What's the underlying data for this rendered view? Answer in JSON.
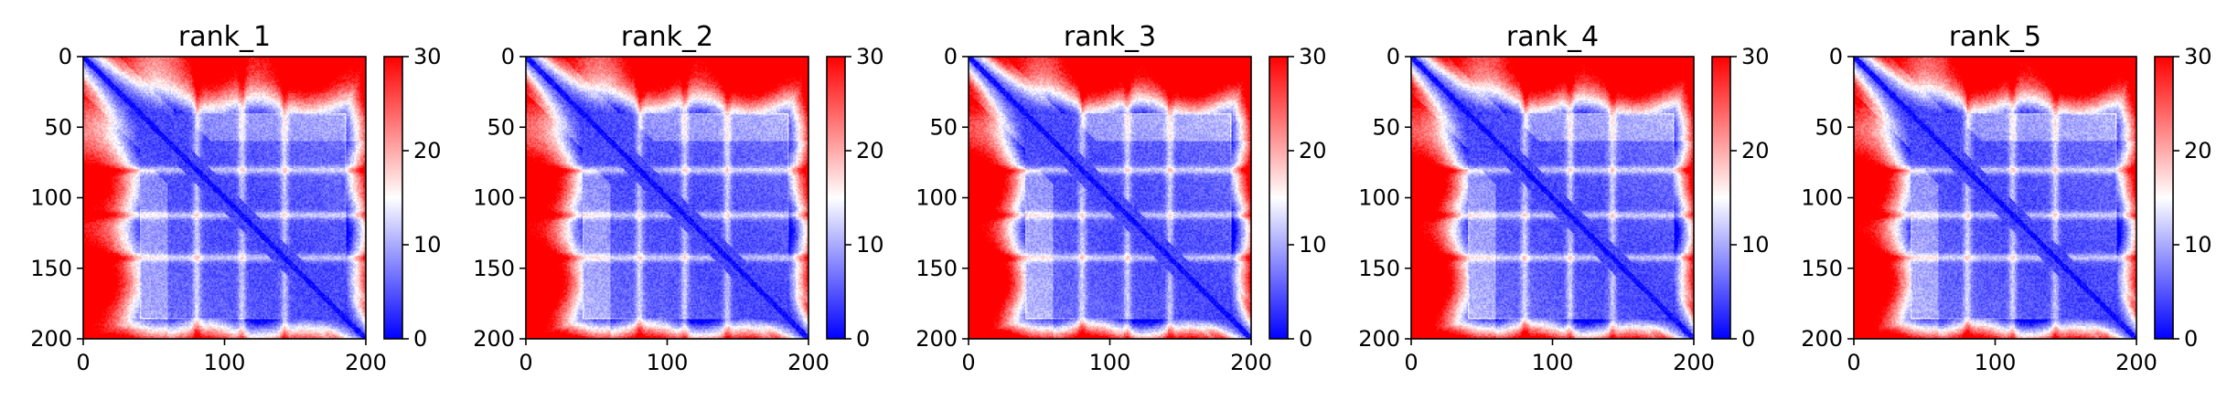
{
  "chart_data": [
    {
      "type": "heatmap",
      "title": "rank_1",
      "x_range": [
        0,
        200
      ],
      "y_range": [
        0,
        200
      ],
      "x_ticks": [
        0,
        100,
        200
      ],
      "y_ticks": [
        0,
        50,
        100,
        150,
        200
      ],
      "colorbar": {
        "range": [
          0,
          30
        ],
        "ticks": [
          0,
          10,
          20,
          30
        ]
      },
      "colormap": [
        "#0000ff",
        "#ffffff",
        "#ff0000"
      ],
      "grid": false,
      "residue_count": 200,
      "intensity": 0.82,
      "domain_boundaries": [
        80,
        112,
        142
      ]
    },
    {
      "type": "heatmap",
      "title": "rank_2",
      "x_range": [
        0,
        200
      ],
      "y_range": [
        0,
        200
      ],
      "x_ticks": [
        0,
        100,
        200
      ],
      "y_ticks": [
        0,
        50,
        100,
        150,
        200
      ],
      "colorbar": {
        "range": [
          0,
          30
        ],
        "ticks": [
          0,
          10,
          20,
          30
        ]
      },
      "colormap": [
        "#0000ff",
        "#ffffff",
        "#ff0000"
      ],
      "grid": false,
      "residue_count": 200,
      "intensity": 0.92,
      "domain_boundaries": [
        80,
        112,
        142
      ]
    },
    {
      "type": "heatmap",
      "title": "rank_3",
      "x_range": [
        0,
        200
      ],
      "y_range": [
        0,
        200
      ],
      "x_ticks": [
        0,
        100,
        200
      ],
      "y_ticks": [
        0,
        50,
        100,
        150,
        200
      ],
      "colorbar": {
        "range": [
          0,
          30
        ],
        "ticks": [
          0,
          10,
          20,
          30
        ]
      },
      "colormap": [
        "#0000ff",
        "#ffffff",
        "#ff0000"
      ],
      "grid": false,
      "residue_count": 200,
      "intensity": 1.0,
      "domain_boundaries": [
        80,
        112,
        142
      ]
    },
    {
      "type": "heatmap",
      "title": "rank_4",
      "x_range": [
        0,
        200
      ],
      "y_range": [
        0,
        200
      ],
      "x_ticks": [
        0,
        100,
        200
      ],
      "y_ticks": [
        0,
        50,
        100,
        150,
        200
      ],
      "colorbar": {
        "range": [
          0,
          30
        ],
        "ticks": [
          0,
          10,
          20,
          30
        ]
      },
      "colormap": [
        "#0000ff",
        "#ffffff",
        "#ff0000"
      ],
      "grid": false,
      "residue_count": 200,
      "intensity": 0.97,
      "domain_boundaries": [
        80,
        112,
        142
      ]
    },
    {
      "type": "heatmap",
      "title": "rank_5",
      "x_range": [
        0,
        200
      ],
      "y_range": [
        0,
        200
      ],
      "x_ticks": [
        0,
        100,
        200
      ],
      "y_ticks": [
        0,
        50,
        100,
        150,
        200
      ],
      "colorbar": {
        "range": [
          0,
          30
        ],
        "ticks": [
          0,
          10,
          20,
          30
        ]
      },
      "colormap": [
        "#0000ff",
        "#ffffff",
        "#ff0000"
      ],
      "grid": false,
      "residue_count": 200,
      "intensity": 0.95,
      "domain_boundaries": [
        80,
        112,
        142
      ]
    }
  ]
}
